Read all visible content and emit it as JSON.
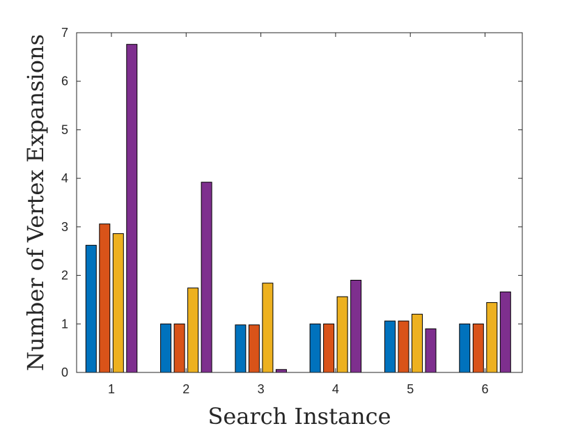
{
  "chart_data": {
    "type": "bar",
    "title": "",
    "xlabel": "Search Instance",
    "ylabel": "Number of Vertex Expansions",
    "categories": [
      "1",
      "2",
      "3",
      "4",
      "5",
      "6"
    ],
    "ylim": [
      0,
      7
    ],
    "yticks": [
      "0",
      "1",
      "2",
      "3",
      "4",
      "5",
      "6",
      "7"
    ],
    "grid": false,
    "legend": "none",
    "series": [
      {
        "color": "#0072BD",
        "values": [
          2.62,
          1.0,
          0.98,
          1.0,
          1.06,
          1.0
        ]
      },
      {
        "color": "#D95319",
        "values": [
          3.06,
          1.0,
          0.98,
          1.0,
          1.06,
          1.0
        ]
      },
      {
        "color": "#EDB120",
        "values": [
          2.86,
          1.74,
          1.84,
          1.56,
          1.2,
          1.44
        ]
      },
      {
        "color": "#7E2F8E",
        "values": [
          6.76,
          3.92,
          0.06,
          1.9,
          0.9,
          1.66
        ]
      }
    ]
  }
}
